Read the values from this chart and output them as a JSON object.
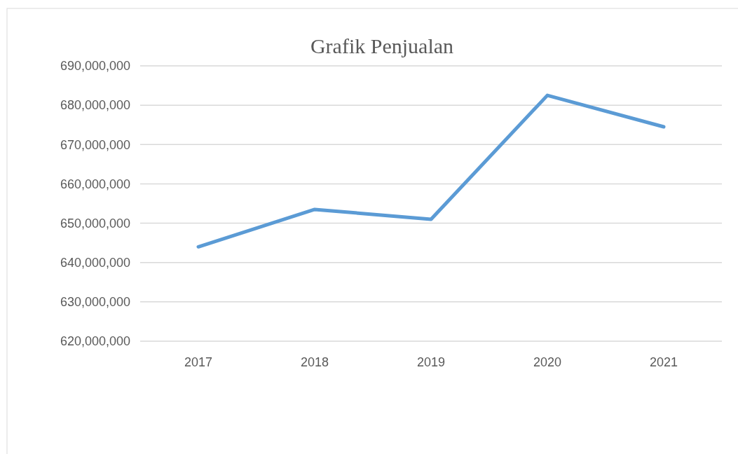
{
  "chart_data": {
    "type": "line",
    "title": "Grafik Penjualan",
    "categories": [
      "2017",
      "2018",
      "2019",
      "2020",
      "2021"
    ],
    "series": [
      {
        "color": "#5b9bd5",
        "values": [
          644000000,
          653500000,
          651000000,
          682500000,
          674500000
        ]
      }
    ],
    "ylim": [
      620000000,
      690000000
    ],
    "yticks": [
      {
        "value": 620000000,
        "label": "620,000,000"
      },
      {
        "value": 630000000,
        "label": "630,000,000"
      },
      {
        "value": 640000000,
        "label": "640,000,000"
      },
      {
        "value": 650000000,
        "label": "650,000,000"
      },
      {
        "value": 660000000,
        "label": "660,000,000"
      },
      {
        "value": 670000000,
        "label": "670,000,000"
      },
      {
        "value": 680000000,
        "label": "680,000,000"
      },
      {
        "value": 690000000,
        "label": "690,000,000"
      }
    ],
    "grid": "y",
    "line_style": "solid"
  }
}
